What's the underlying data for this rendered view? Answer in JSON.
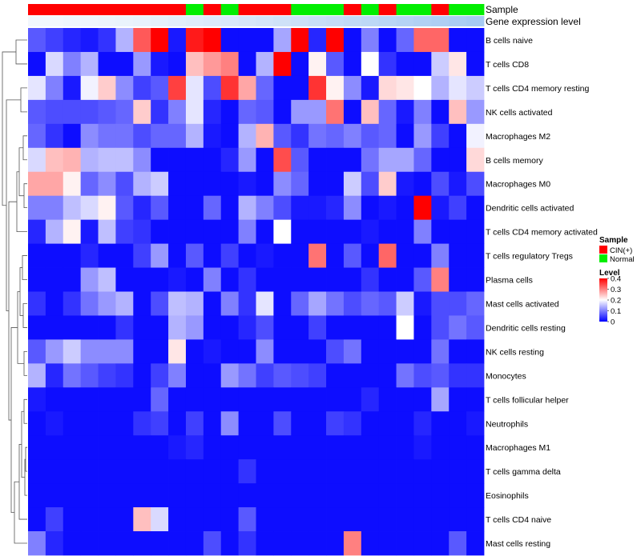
{
  "chart_data": {
    "type": "heatmap",
    "title": "",
    "annotations": [
      {
        "name": "Sample",
        "label": "Sample"
      },
      {
        "name": "Gene expression level",
        "label": "Gene expression level"
      }
    ],
    "sample_groups": [
      "CIN(+)",
      "CIN(+)",
      "CIN(+)",
      "CIN(+)",
      "CIN(+)",
      "CIN(+)",
      "CIN(+)",
      "CIN(+)",
      "CIN(+)",
      "Normal",
      "CIN(+)",
      "Normal",
      "CIN(+)",
      "CIN(+)",
      "CIN(+)",
      "Normal",
      "Normal",
      "Normal",
      "CIN(+)",
      "Normal",
      "CIN(+)",
      "Normal",
      "Normal",
      "CIN(+)",
      "Normal",
      "Normal"
    ],
    "expression_level_colors": [
      "#f2f7fd",
      "#f2f7fd",
      "#eff6fd",
      "#eef5fd",
      "#ecf4fc",
      "#eaf3fc",
      "#e8f2fc",
      "#e5f0fb",
      "#e2eefb",
      "#dfecfb",
      "#dceafa",
      "#d9e8fa",
      "#d6e6f9",
      "#d3e4f9",
      "#cfe2f8",
      "#cce0f8",
      "#c8def7",
      "#c5dcf7",
      "#c1daf6",
      "#bdd8f6",
      "#b9d6f5",
      "#b5d3f5",
      "#b1d1f4",
      "#aecff4",
      "#aacdf3",
      "#a6cbf3"
    ],
    "rows": [
      "B cells naive",
      "T cells CD8",
      "T cells CD4 memory resting",
      "NK cells activated",
      "Macrophages M2",
      "B cells memory",
      "Macrophages M0",
      "Dendritic cells activated",
      "T cells CD4 memory activated",
      "T cells regulatory  Tregs",
      "Plasma cells",
      "Mast cells activated",
      "Dendritic cells resting",
      "NK cells resting",
      "Monocytes",
      "T cells follicular helper",
      "Neutrophils",
      "Macrophages M1",
      "T cells gamma delta",
      "Eosinophils",
      "T cells CD4 naive",
      "Mast cells resting"
    ],
    "values": [
      [
        0.07,
        0.05,
        0.03,
        0.02,
        0.04,
        0.14,
        0.33,
        0.4,
        0.02,
        0.38,
        0.4,
        0.01,
        0.01,
        0.01,
        0.13,
        0.4,
        0.03,
        0.4,
        0.01,
        0.1,
        0.01,
        0.08,
        0.32,
        0.32,
        0.01,
        0.01
      ],
      [
        0.01,
        0.17,
        0.1,
        0.14,
        0.01,
        0.01,
        0.12,
        0.02,
        0.01,
        0.25,
        0.28,
        0.3,
        0.01,
        0.14,
        0.4,
        0.01,
        0.21,
        0.07,
        0.01,
        0.2,
        0.04,
        0.01,
        0.01,
        0.16,
        0.22,
        0.01
      ],
      [
        0.18,
        0.1,
        0.02,
        0.19,
        0.24,
        0.11,
        0.05,
        0.07,
        0.35,
        0.18,
        0.06,
        0.36,
        0.27,
        0.08,
        0.01,
        0.01,
        0.36,
        0.21,
        0.11,
        0.02,
        0.23,
        0.22,
        0.2,
        0.14,
        0.18,
        0.16
      ],
      [
        0.07,
        0.06,
        0.06,
        0.06,
        0.07,
        0.08,
        0.24,
        0.04,
        0.1,
        0.18,
        0.03,
        0.01,
        0.08,
        0.07,
        0.01,
        0.12,
        0.12,
        0.31,
        0.01,
        0.25,
        0.08,
        0.02,
        0.1,
        0.01,
        0.25,
        0.12
      ],
      [
        0.08,
        0.04,
        0.01,
        0.11,
        0.09,
        0.09,
        0.06,
        0.08,
        0.08,
        0.14,
        0.02,
        0.01,
        0.14,
        0.26,
        0.07,
        0.04,
        0.09,
        0.08,
        0.1,
        0.07,
        0.08,
        0.01,
        0.12,
        0.05,
        0.01,
        0.19
      ],
      [
        0.17,
        0.25,
        0.26,
        0.14,
        0.15,
        0.15,
        0.11,
        0.01,
        0.01,
        0.01,
        0.01,
        0.03,
        0.12,
        0.01,
        0.34,
        0.07,
        0.01,
        0.01,
        0.01,
        0.09,
        0.13,
        0.13,
        0.08,
        0.01,
        0.01,
        0.23
      ],
      [
        0.27,
        0.27,
        0.21,
        0.08,
        0.11,
        0.06,
        0.14,
        0.16,
        0.01,
        0.01,
        0.01,
        0.01,
        0.02,
        0.01,
        0.11,
        0.08,
        0.01,
        0.01,
        0.16,
        0.06,
        0.24,
        0.02,
        0.01,
        0.06,
        0.02,
        0.06
      ],
      [
        0.1,
        0.1,
        0.15,
        0.17,
        0.21,
        0.07,
        0.03,
        0.07,
        0.01,
        0.01,
        0.08,
        0.01,
        0.14,
        0.1,
        0.06,
        0.02,
        0.02,
        0.03,
        0.11,
        0.01,
        0.02,
        0.01,
        0.4,
        0.02,
        0.05,
        0.01
      ],
      [
        0.03,
        0.14,
        0.21,
        0.02,
        0.15,
        0.05,
        0.04,
        0.01,
        0.01,
        0.01,
        0.01,
        0.01,
        0.1,
        0.01,
        0.2,
        0.01,
        0.01,
        0.01,
        0.01,
        0.02,
        0.01,
        0.01,
        0.1,
        0.01,
        0.01,
        0.01
      ],
      [
        0.01,
        0.01,
        0.01,
        0.03,
        0.01,
        0.01,
        0.05,
        0.12,
        0.01,
        0.07,
        0.01,
        0.05,
        0.01,
        0.02,
        0.01,
        0.01,
        0.31,
        0.01,
        0.07,
        0.01,
        0.32,
        0.01,
        0.01,
        0.1,
        0.01,
        0.01
      ],
      [
        0.01,
        0.01,
        0.01,
        0.12,
        0.15,
        0.01,
        0.01,
        0.01,
        0.02,
        0.01,
        0.1,
        0.01,
        0.04,
        0.01,
        0.01,
        0.01,
        0.01,
        0.01,
        0.01,
        0.04,
        0.01,
        0.01,
        0.07,
        0.3,
        0.01,
        0.01
      ],
      [
        0.04,
        0.01,
        0.04,
        0.09,
        0.12,
        0.14,
        0.01,
        0.06,
        0.15,
        0.14,
        0.01,
        0.1,
        0.04,
        0.18,
        0.01,
        0.08,
        0.13,
        0.09,
        0.06,
        0.08,
        0.07,
        0.16,
        0.02,
        0.06,
        0.06,
        0.08
      ],
      [
        0.01,
        0.01,
        0.01,
        0.01,
        0.01,
        0.04,
        0.01,
        0.01,
        0.14,
        0.12,
        0.01,
        0.01,
        0.03,
        0.06,
        0.01,
        0.01,
        0.05,
        0.01,
        0.01,
        0.01,
        0.01,
        0.2,
        0.01,
        0.06,
        0.09,
        0.07
      ],
      [
        0.07,
        0.12,
        0.16,
        0.11,
        0.11,
        0.11,
        0.01,
        0.01,
        0.22,
        0.01,
        0.02,
        0.01,
        0.01,
        0.11,
        0.01,
        0.01,
        0.01,
        0.06,
        0.09,
        0.01,
        0.01,
        0.01,
        0.01,
        0.09,
        0.01,
        0.01
      ],
      [
        0.14,
        0.03,
        0.09,
        0.07,
        0.05,
        0.04,
        0.01,
        0.05,
        0.1,
        0.01,
        0.01,
        0.12,
        0.09,
        0.05,
        0.07,
        0.06,
        0.05,
        0.01,
        0.01,
        0.01,
        0.01,
        0.09,
        0.06,
        0.07,
        0.04,
        0.04
      ],
      [
        0.02,
        0.01,
        0.01,
        0.01,
        0.01,
        0.01,
        0.01,
        0.08,
        0.01,
        0.01,
        0.01,
        0.01,
        0.01,
        0.01,
        0.01,
        0.01,
        0.01,
        0.01,
        0.01,
        0.03,
        0.01,
        0.01,
        0.01,
        0.13,
        0.01,
        0.01
      ],
      [
        0.01,
        0.02,
        0.01,
        0.01,
        0.01,
        0.01,
        0.04,
        0.05,
        0.01,
        0.05,
        0.01,
        0.11,
        0.01,
        0.01,
        0.06,
        0.01,
        0.01,
        0.05,
        0.04,
        0.01,
        0.01,
        0.01,
        0.03,
        0.01,
        0.01,
        0.02
      ],
      [
        0.01,
        0.01,
        0.01,
        0.01,
        0.01,
        0.01,
        0.01,
        0.01,
        0.02,
        0.03,
        0.01,
        0.01,
        0.01,
        0.01,
        0.01,
        0.01,
        0.01,
        0.01,
        0.01,
        0.01,
        0.01,
        0.01,
        0.02,
        0.01,
        0.01,
        0.01
      ],
      [
        0.01,
        0.01,
        0.01,
        0.01,
        0.01,
        0.01,
        0.01,
        0.01,
        0.01,
        0.01,
        0.01,
        0.01,
        0.04,
        0.01,
        0.01,
        0.01,
        0.01,
        0.01,
        0.01,
        0.01,
        0.01,
        0.01,
        0.01,
        0.01,
        0.01,
        0.01
      ],
      [
        0.01,
        0.01,
        0.01,
        0.01,
        0.01,
        0.01,
        0.01,
        0.01,
        0.01,
        0.01,
        0.01,
        0.01,
        0.01,
        0.01,
        0.01,
        0.01,
        0.01,
        0.01,
        0.01,
        0.01,
        0.01,
        0.01,
        0.01,
        0.01,
        0.01,
        0.01
      ],
      [
        0.01,
        0.05,
        0.01,
        0.01,
        0.01,
        0.01,
        0.25,
        0.17,
        0.01,
        0.01,
        0.01,
        0.01,
        0.07,
        0.01,
        0.01,
        0.01,
        0.01,
        0.01,
        0.01,
        0.01,
        0.01,
        0.01,
        0.01,
        0.01,
        0.01,
        0.01
      ],
      [
        0.1,
        0.03,
        0.01,
        0.01,
        0.01,
        0.01,
        0.01,
        0.01,
        0.01,
        0.01,
        0.06,
        0.01,
        0.04,
        0.01,
        0.01,
        0.01,
        0.01,
        0.01,
        0.3,
        0.01,
        0.01,
        0.01,
        0.01,
        0.01,
        0.07,
        0.01
      ]
    ],
    "legend": {
      "sample": {
        "title": "Sample",
        "entries": [
          {
            "label": "CIN(+)",
            "color": "#ff0000"
          },
          {
            "label": "Normal",
            "color": "#00ee00"
          }
        ]
      },
      "level": {
        "title": "Level",
        "ticks": [
          "0.4",
          "0.3",
          "0.2",
          "0.1",
          "0"
        ],
        "tick_values": [
          0.4,
          0.3,
          0.2,
          0.1,
          0.0
        ],
        "range": [
          0,
          0.4
        ]
      }
    },
    "colors": {
      "low": "#0000ff",
      "mid": "#ffffff",
      "high": "#ff0000",
      "cin": "#ff0000",
      "normal": "#00ee00"
    }
  }
}
